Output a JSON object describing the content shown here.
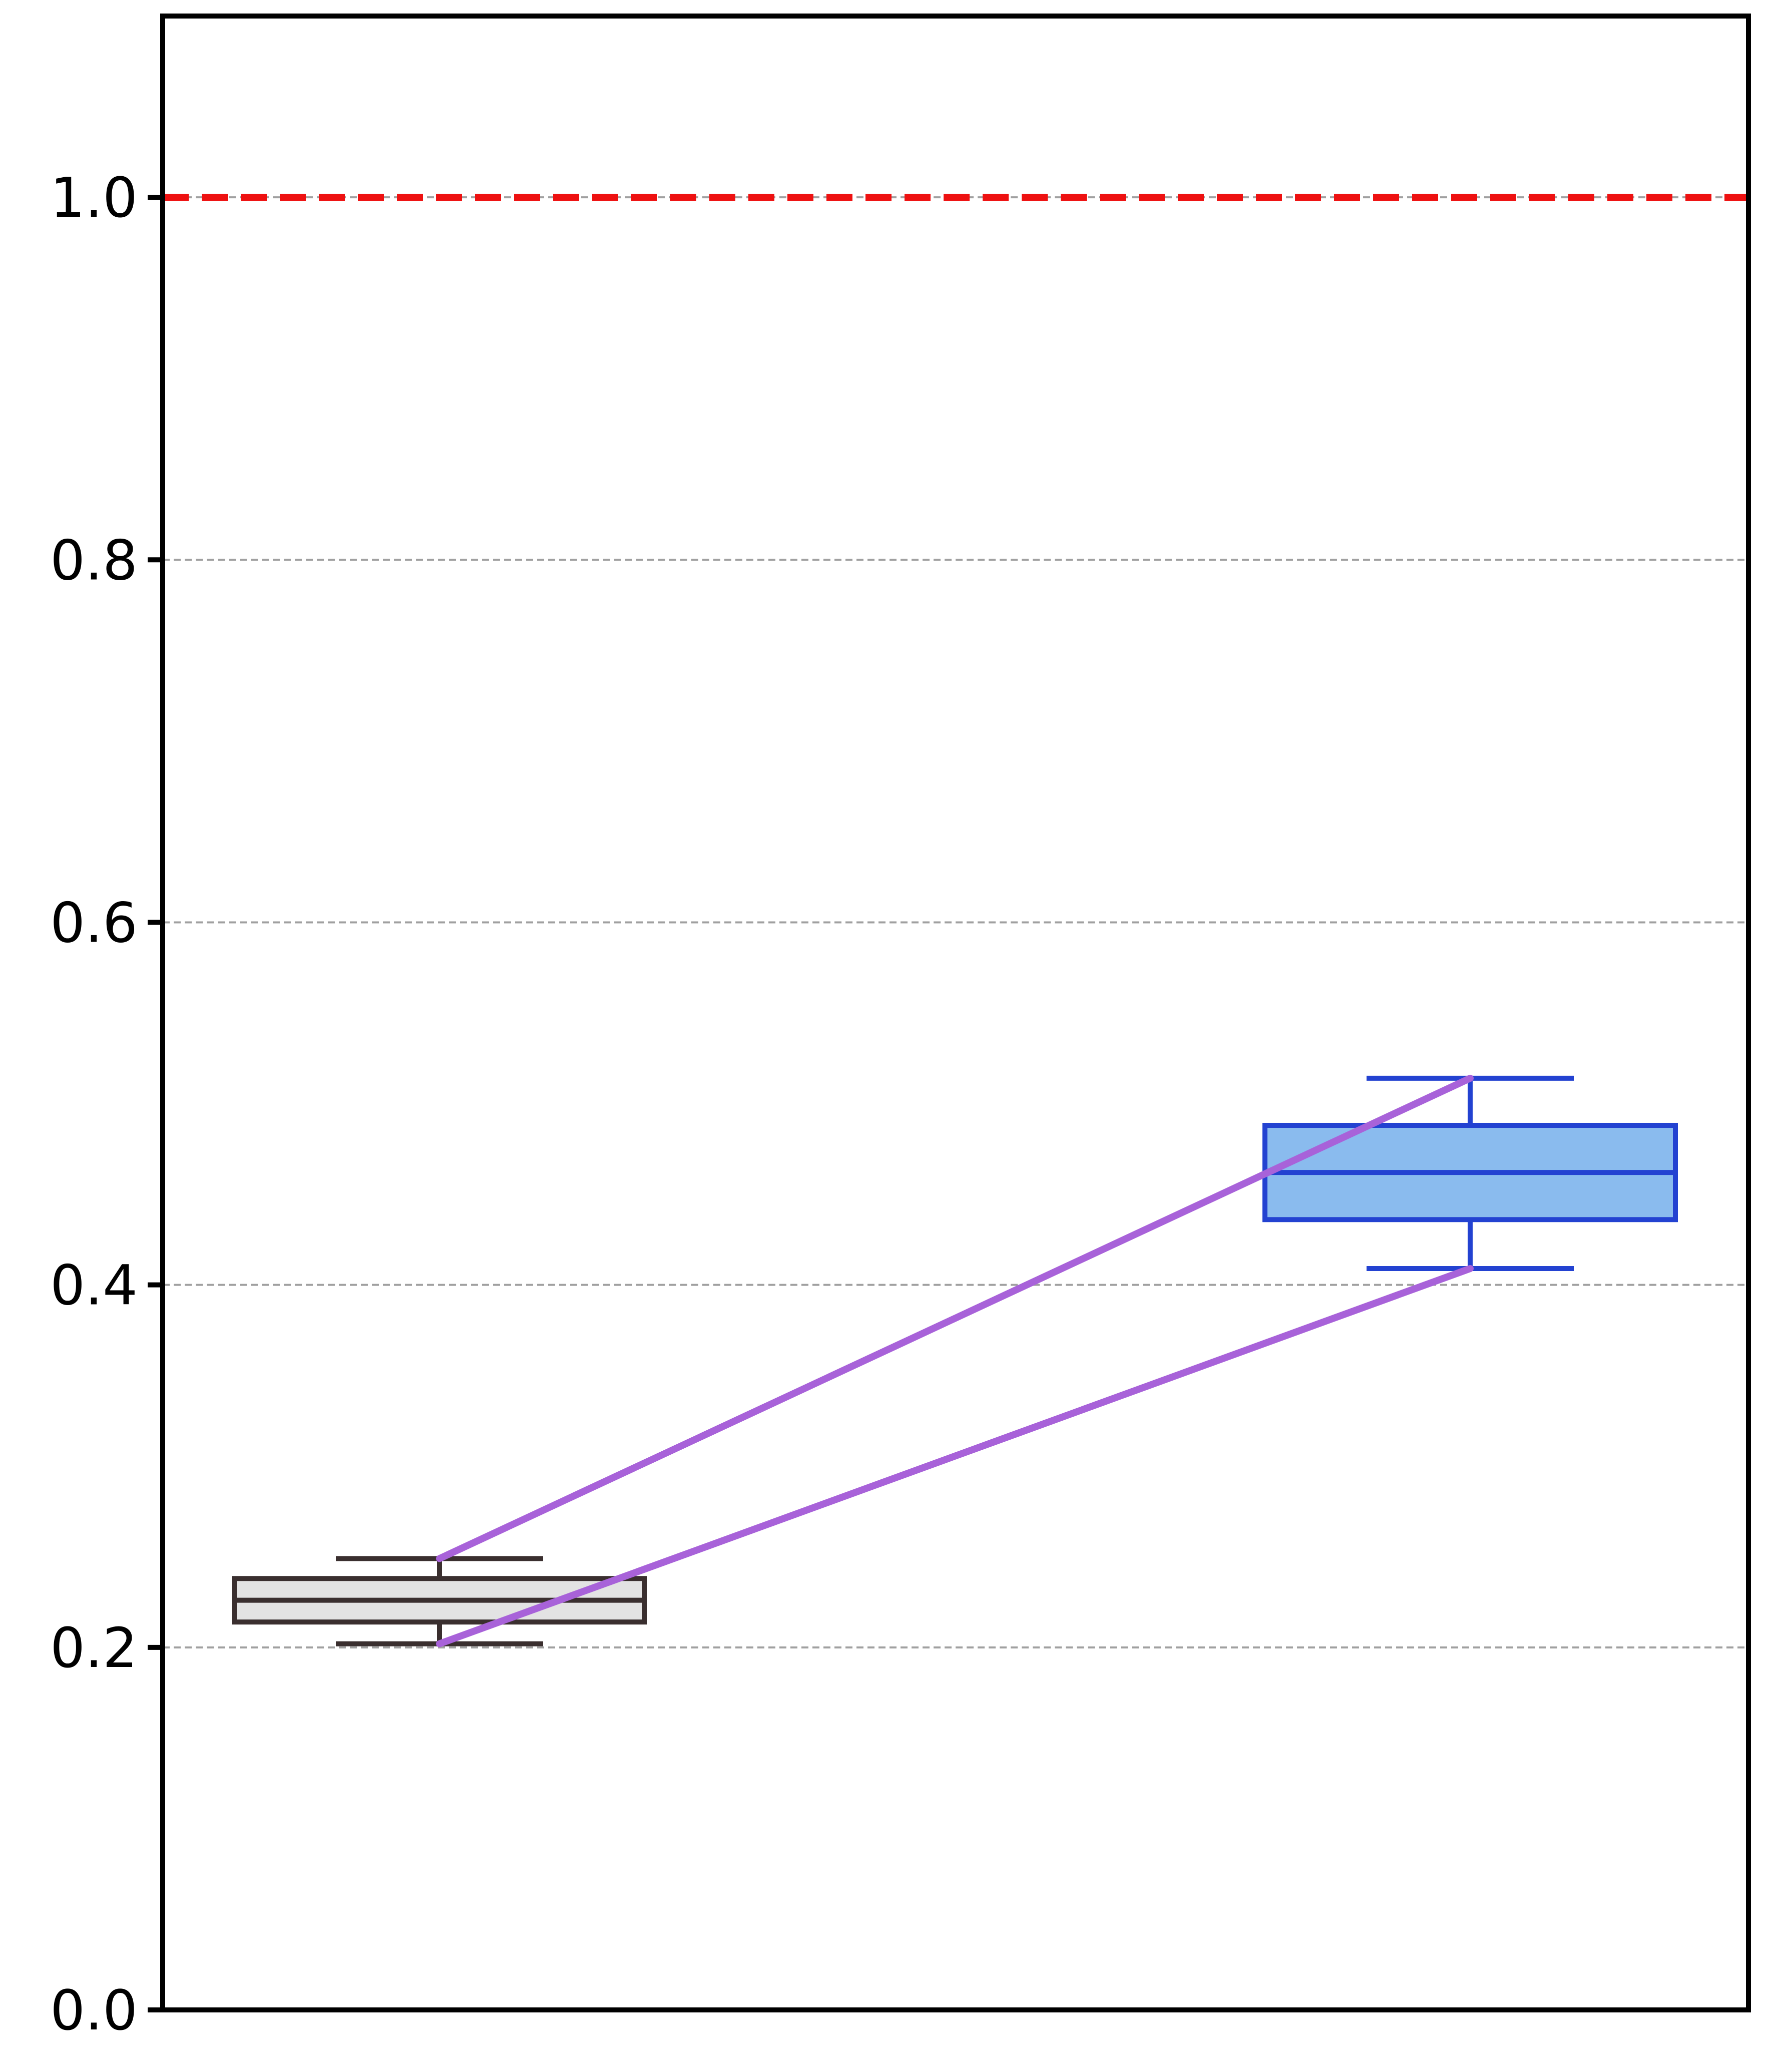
{
  "chart_data": {
    "type": "box",
    "ylim": [
      0.0,
      1.1
    ],
    "yticks": [
      0.0,
      0.2,
      0.4,
      0.6,
      0.8,
      1.0
    ],
    "ytick_labels": [
      "0.0",
      "0.2",
      "0.4",
      "0.6",
      "0.8",
      "1.0"
    ],
    "grid": "horizontal dashed",
    "reference_line": {
      "y": 1.0,
      "color": "#ee1111",
      "style": "dashed"
    },
    "boxes": [
      {
        "position": 1,
        "whisker_low": 0.202,
        "q1": 0.214,
        "median": 0.226,
        "q3": 0.238,
        "whisker_high": 0.249,
        "fill": "#e3e3e3",
        "edge": "#3a2f2f"
      },
      {
        "position": 2,
        "whisker_low": 0.409,
        "q1": 0.436,
        "median": 0.462,
        "q3": 0.488,
        "whisker_high": 0.514,
        "fill": "#8abbee",
        "edge": "#2342d1"
      }
    ],
    "connectors": {
      "color": "#a862d9",
      "lines": [
        {
          "from": {
            "x": 1,
            "y": 0.249
          },
          "to": {
            "x": 2,
            "y": 0.514
          }
        },
        {
          "from": {
            "x": 1,
            "y": 0.202
          },
          "to": {
            "x": 2,
            "y": 0.409
          }
        }
      ]
    }
  }
}
